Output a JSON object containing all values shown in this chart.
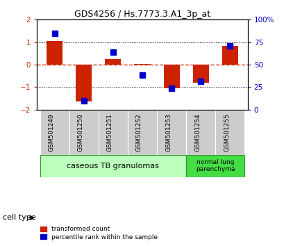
{
  "title": "GDS4256 / Hs.7773.3.A1_3p_at",
  "samples": [
    "GSM501249",
    "GSM501250",
    "GSM501251",
    "GSM501252",
    "GSM501253",
    "GSM501254",
    "GSM501255"
  ],
  "red_values": [
    1.05,
    -1.65,
    0.25,
    0.02,
    -1.05,
    -0.8,
    0.85
  ],
  "blue_values": [
    1.4,
    -1.62,
    0.55,
    -0.45,
    -1.05,
    -0.75,
    0.85
  ],
  "ylim": [
    -2,
    2
  ],
  "yticks_left": [
    -2,
    -1,
    0,
    1,
    2
  ],
  "yticks_right_vals": [
    0,
    25,
    50,
    75,
    100
  ],
  "group1_label": "caseous TB granulomas",
  "group2_label": "normal lung\nparenchyma",
  "group1_indices": [
    0,
    1,
    2,
    3,
    4
  ],
  "group2_indices": [
    5,
    6
  ],
  "cell_type_label": "cell type",
  "legend_red": "transformed count",
  "legend_blue": "percentile rank within the sample",
  "bar_color": "#cc2200",
  "blue_color": "#0000cc",
  "group1_color": "#bbffbb",
  "group2_color": "#44dd44",
  "tick_bg_color": "#cccccc",
  "bar_width": 0.55,
  "blue_marker_size": 6
}
